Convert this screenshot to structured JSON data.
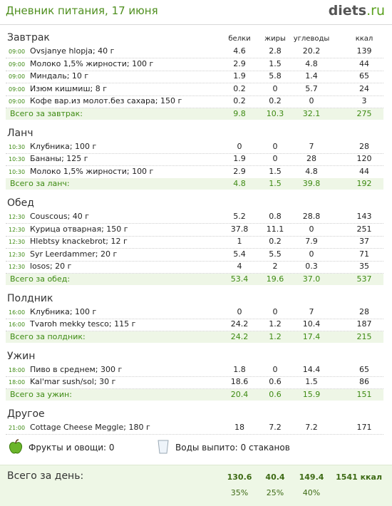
{
  "header": {
    "title": "Дневник питания, 17 июня",
    "logo": "diets",
    "logo_suffix": ".ru"
  },
  "columns": [
    "белки",
    "жиры",
    "углеводы",
    "ккал"
  ],
  "meals": [
    {
      "name": "Завтрак",
      "items": [
        {
          "time": "09:00",
          "food": "Ovsjanye hlopja; 40 г",
          "values": [
            "4.6",
            "2.8",
            "20.2",
            "139"
          ]
        },
        {
          "time": "09:00",
          "food": "Молоко 1,5% жирности; 100 г",
          "values": [
            "2.9",
            "1.5",
            "4.8",
            "44"
          ]
        },
        {
          "time": "09:00",
          "food": "Миндаль; 10 г",
          "values": [
            "1.9",
            "5.8",
            "1.4",
            "65"
          ]
        },
        {
          "time": "09:00",
          "food": "Изюм кишмиш; 8 г",
          "values": [
            "0.2",
            "0",
            "5.7",
            "24"
          ]
        },
        {
          "time": "09:00",
          "food": "Кофе вар.из молот.без сахара; 150 г",
          "values": [
            "0.2",
            "0.2",
            "0",
            "3"
          ]
        }
      ],
      "total": {
        "label": "Всего за завтрак:",
        "values": [
          "9.8",
          "10.3",
          "32.1",
          "275"
        ]
      }
    },
    {
      "name": "Ланч",
      "items": [
        {
          "time": "10:30",
          "food": "Клубника; 100 г",
          "values": [
            "0",
            "0",
            "7",
            "28"
          ]
        },
        {
          "time": "10:30",
          "food": "Бананы; 125 г",
          "values": [
            "1.9",
            "0",
            "28",
            "120"
          ]
        },
        {
          "time": "10:30",
          "food": "Молоко 1,5% жирности; 100 г",
          "values": [
            "2.9",
            "1.5",
            "4.8",
            "44"
          ]
        }
      ],
      "total": {
        "label": "Всего за ланч:",
        "values": [
          "4.8",
          "1.5",
          "39.8",
          "192"
        ]
      }
    },
    {
      "name": "Обед",
      "items": [
        {
          "time": "12:30",
          "food": "Couscous; 40 г",
          "values": [
            "5.2",
            "0.8",
            "28.8",
            "143"
          ]
        },
        {
          "time": "12:30",
          "food": "Курица отварная; 150 г",
          "values": [
            "37.8",
            "11.1",
            "0",
            "251"
          ]
        },
        {
          "time": "12:30",
          "food": "Hlebtsy knackebrot; 12 г",
          "values": [
            "1",
            "0.2",
            "7.9",
            "37"
          ]
        },
        {
          "time": "12:30",
          "food": "Syr Leerdammer; 20 г",
          "values": [
            "5.4",
            "5.5",
            "0",
            "71"
          ]
        },
        {
          "time": "12:30",
          "food": "losos; 20 г",
          "values": [
            "4",
            "2",
            "0.3",
            "35"
          ]
        }
      ],
      "total": {
        "label": "Всего за обед:",
        "values": [
          "53.4",
          "19.6",
          "37.0",
          "537"
        ]
      }
    },
    {
      "name": "Полдник",
      "items": [
        {
          "time": "16:00",
          "food": "Клубника; 100 г",
          "values": [
            "0",
            "0",
            "7",
            "28"
          ]
        },
        {
          "time": "16:00",
          "food": "Tvaroh mekky tesco; 115 г",
          "values": [
            "24.2",
            "1.2",
            "10.4",
            "187"
          ]
        }
      ],
      "total": {
        "label": "Всего за полдник:",
        "values": [
          "24.2",
          "1.2",
          "17.4",
          "215"
        ]
      }
    },
    {
      "name": "Ужин",
      "items": [
        {
          "time": "18:00",
          "food": "Пиво в среднем; 300 г",
          "values": [
            "1.8",
            "0",
            "14.4",
            "65"
          ]
        },
        {
          "time": "18:00",
          "food": "Kal'mar sush/sol; 30 г",
          "values": [
            "18.6",
            "0.6",
            "1.5",
            "86"
          ]
        }
      ],
      "total": {
        "label": "Всего за ужин:",
        "values": [
          "20.4",
          "0.6",
          "15.9",
          "151"
        ]
      }
    },
    {
      "name": "Другое",
      "items": [
        {
          "time": "21:00",
          "food": "Cottage Cheese Meggle; 180 г",
          "values": [
            "18",
            "7.2",
            "7.2",
            "171"
          ]
        }
      ]
    }
  ],
  "extras": {
    "fruits": "Фрукты и овощи: 0",
    "water": "Воды выпито: 0 стаканов"
  },
  "day_total": {
    "label": "Всего за день:",
    "values": [
      "130.6",
      "40.4",
      "149.4",
      "1541 ккал"
    ],
    "percents": [
      "35%",
      "25%",
      "40%"
    ]
  }
}
